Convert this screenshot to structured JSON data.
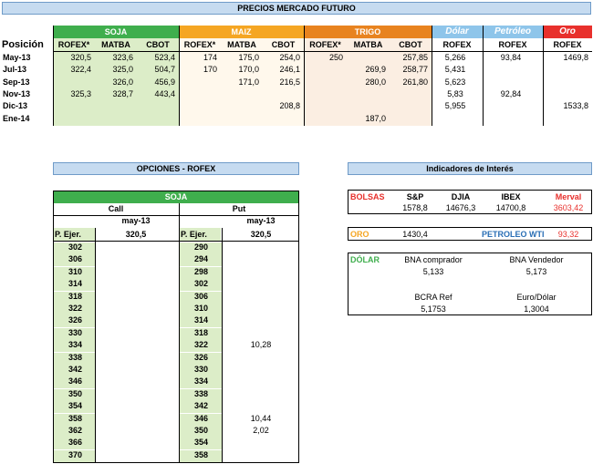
{
  "futures": {
    "title": "PRECIOS MERCADO FUTURO",
    "groups": {
      "soja": "SOJA",
      "maiz": "MAIZ",
      "trigo": "TRIGO",
      "dolar": "Dólar",
      "petroleo": "Petróleo",
      "oro": "Oro"
    },
    "position_label": "Posición",
    "col_labels": [
      "ROFEX*",
      "MATBA",
      "CBOT",
      "ROFEX*",
      "MATBA",
      "CBOT",
      "ROFEX*",
      "MATBA",
      "CBOT",
      "ROFEX",
      "ROFEX",
      "ROFEX"
    ],
    "rows": [
      {
        "pos": "May-13",
        "v": [
          "320,5",
          "323,6",
          "523,4",
          "174",
          "175,0",
          "254,0",
          "250",
          "",
          "257,85",
          "5,266",
          "93,84",
          "1469,8"
        ]
      },
      {
        "pos": "Jul-13",
        "v": [
          "322,4",
          "325,0",
          "504,7",
          "170",
          "170,0",
          "246,1",
          "",
          "269,9",
          "258,77",
          "5,431",
          "",
          ""
        ]
      },
      {
        "pos": "Sep-13",
        "v": [
          "",
          "326,0",
          "456,9",
          "",
          "171,0",
          "216,5",
          "",
          "280,0",
          "261,80",
          "5,623",
          "",
          ""
        ]
      },
      {
        "pos": "Nov-13",
        "v": [
          "325,3",
          "328,7",
          "443,4",
          "",
          "",
          "",
          "",
          "",
          "",
          "5,83",
          "92,84",
          ""
        ]
      },
      {
        "pos": "Dic-13",
        "v": [
          "",
          "",
          "",
          "",
          "",
          "208,8",
          "",
          "",
          "",
          "5,955",
          "",
          "1533,8"
        ]
      },
      {
        "pos": "Ene-14",
        "v": [
          "",
          "",
          "",
          "",
          "",
          "",
          "",
          "187,0",
          "",
          "",
          "",
          ""
        ]
      }
    ]
  },
  "options": {
    "title": "OPCIONES - ROFEX",
    "product": "SOJA",
    "call_label": "Call",
    "put_label": "Put",
    "call_month": "may-13",
    "put_month": "may-13",
    "call_strike_label": "P. Ejer.",
    "put_strike_label": "P. Ejer.",
    "call_underlying": "320,5",
    "put_underlying": "320,5",
    "rows": [
      {
        "cs": "302",
        "cv": "",
        "ps": "290",
        "pv": ""
      },
      {
        "cs": "306",
        "cv": "",
        "ps": "294",
        "pv": ""
      },
      {
        "cs": "310",
        "cv": "",
        "ps": "298",
        "pv": ""
      },
      {
        "cs": "314",
        "cv": "",
        "ps": "302",
        "pv": ""
      },
      {
        "cs": "318",
        "cv": "",
        "ps": "306",
        "pv": ""
      },
      {
        "cs": "322",
        "cv": "",
        "ps": "310",
        "pv": ""
      },
      {
        "cs": "326",
        "cv": "",
        "ps": "314",
        "pv": ""
      },
      {
        "cs": "330",
        "cv": "",
        "ps": "318",
        "pv": ""
      },
      {
        "cs": "334",
        "cv": "",
        "ps": "322",
        "pv": "10,28"
      },
      {
        "cs": "338",
        "cv": "",
        "ps": "326",
        "pv": ""
      },
      {
        "cs": "342",
        "cv": "",
        "ps": "330",
        "pv": ""
      },
      {
        "cs": "346",
        "cv": "",
        "ps": "334",
        "pv": ""
      },
      {
        "cs": "350",
        "cv": "",
        "ps": "338",
        "pv": ""
      },
      {
        "cs": "354",
        "cv": "",
        "ps": "342",
        "pv": ""
      },
      {
        "cs": "358",
        "cv": "",
        "ps": "346",
        "pv": "10,44"
      },
      {
        "cs": "362",
        "cv": "",
        "ps": "350",
        "pv": "2,02"
      },
      {
        "cs": "366",
        "cv": "",
        "ps": "354",
        "pv": ""
      },
      {
        "cs": "370",
        "cv": "",
        "ps": "358",
        "pv": ""
      }
    ]
  },
  "indicators": {
    "title": "Indicadores de Interés",
    "bolsas": {
      "label": "BOLSAS",
      "cols": [
        "S&P",
        "DJIA",
        "IBEX",
        "Merval"
      ],
      "vals": [
        "1578,8",
        "14676,3",
        "14700,8",
        "3603,42"
      ]
    },
    "oro": {
      "label": "ORO",
      "value": "1430,4",
      "petroleo_label": "PETROLEO WTI",
      "petroleo_value": "93,32"
    },
    "dolar": {
      "label": "DÓLAR",
      "bna_comprador_label": "BNA comprador",
      "bna_comprador": "5,133",
      "bna_vendedor_label": "BNA Vendedor",
      "bna_vendedor": "5,173",
      "bcra_label": "BCRA Ref",
      "bcra": "5,1753",
      "euro_label": "Euro/Dólar",
      "euro": "1,3004"
    }
  },
  "colors": {
    "soja": "#3fae4d",
    "maiz": "#f5a623",
    "trigo": "#e8831f",
    "dolar": "#8ec5ea",
    "petroleo": "#8ec5ea",
    "oro": "#e8302c",
    "header_blue": "#c6dbf0"
  }
}
